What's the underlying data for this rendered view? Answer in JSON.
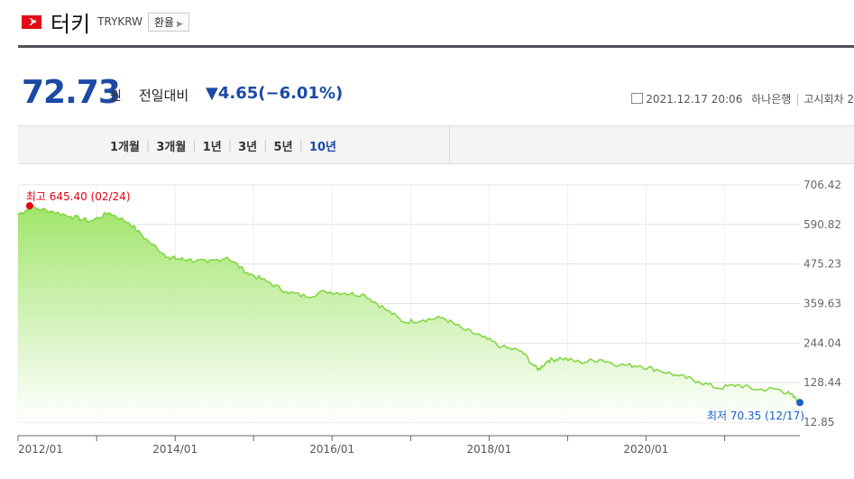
{
  "header": {
    "country": "터키",
    "code": "TRYKRW",
    "exchange_button": "환율"
  },
  "quote": {
    "price": "72.73",
    "unit": "원",
    "compare_label": "전일대비",
    "change": "▼4.65(−6.01%)",
    "datetime": "2021.12.17 20:06",
    "bank": "하나은행",
    "notice": "고시회차 2"
  },
  "tabs": [
    {
      "label": "1개월",
      "active": false
    },
    {
      "label": "3개월",
      "active": false
    },
    {
      "label": "1년",
      "active": false
    },
    {
      "label": "3년",
      "active": false
    },
    {
      "label": "5년",
      "active": false
    },
    {
      "label": "10년",
      "active": true
    }
  ],
  "colors": {
    "accent": "#1b4aa6",
    "high": "#e60012",
    "low": "#1b5fc9",
    "line": "#7ed63b"
  },
  "chart_data": {
    "type": "area",
    "x_tick_labels": [
      "2012/01",
      "2014/01",
      "2016/01",
      "2018/01",
      "2020/01"
    ],
    "y_tick_labels": [
      "706.42",
      "590.82",
      "475.23",
      "359.63",
      "244.04",
      "128.44",
      "12.85"
    ],
    "ylim": [
      12.85,
      706.42
    ],
    "xlim": [
      "2012-01-01",
      "2021-12-17"
    ],
    "high_label": "최고 645.40 (02/24)",
    "low_label": "최저 70.35 (12/17)",
    "high_value": 645.4,
    "low_value": 70.35,
    "series": [
      {
        "x": [
          "2012-01-01",
          "2012-03-01",
          "2012-06-01",
          "2012-09-01",
          "2012-12-01",
          "2013-03-01",
          "2013-06-01",
          "2013-09-01",
          "2013-12-01",
          "2014-01-15",
          "2014-03-01",
          "2014-06-01",
          "2014-09-01",
          "2014-12-01",
          "2015-03-01",
          "2015-06-01",
          "2015-09-01",
          "2015-12-01",
          "2016-03-01",
          "2016-06-01",
          "2016-09-01",
          "2016-12-01",
          "2017-03-01",
          "2017-06-01",
          "2017-09-01",
          "2017-12-01",
          "2018-03-01",
          "2018-06-01",
          "2018-08-15",
          "2018-10-01",
          "2018-12-01",
          "2019-03-01",
          "2019-06-01",
          "2019-09-01",
          "2019-12-01",
          "2020-03-01",
          "2020-06-01",
          "2020-09-01",
          "2020-12-01",
          "2021-03-01",
          "2021-06-01",
          "2021-09-01",
          "2021-11-01",
          "2021-12-17"
        ],
        "y": [
          620,
          640,
          630,
          615,
          600,
          625,
          595,
          540,
          495,
          490,
          488,
          480,
          495,
          450,
          425,
          395,
          380,
          395,
          390,
          385,
          345,
          305,
          312,
          318,
          285,
          262,
          233,
          220,
          165,
          193,
          200,
          188,
          196,
          180,
          178,
          165,
          148,
          132,
          112,
          122,
          108,
          110,
          95,
          70.35
        ]
      }
    ]
  }
}
